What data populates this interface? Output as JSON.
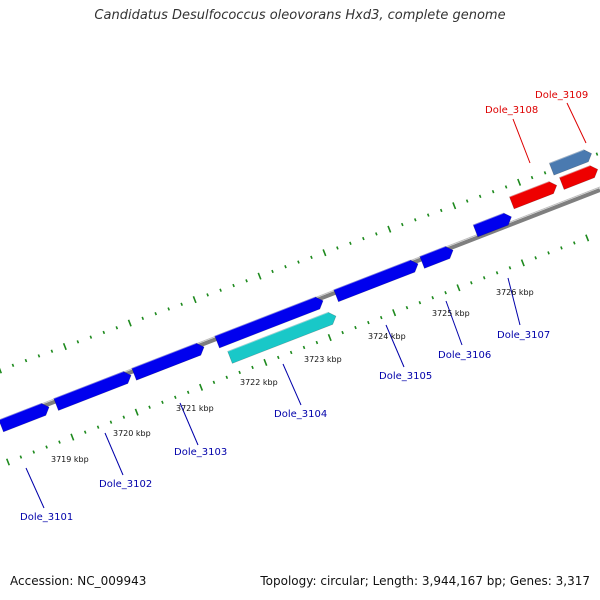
{
  "title": "Candidatus Desulfococcus oleovorans Hxd3, complete genome",
  "footer": {
    "accession": "Accession: NC_009943",
    "stats": "Topology: circular; Length: 3,944,167 bp; Genes: 3,317"
  },
  "colors": {
    "backbone": "#7f7f7f",
    "tick": "#1e8a1e",
    "forward_gene": "#0000ee",
    "highlight_gene": "#19c8c8",
    "rna_gene": "#ee0000",
    "other_gene": "#4a7ab0"
  },
  "tick_labels": [
    "3719 kbp",
    "3720 kbp",
    "3721 kbp",
    "3722 kbp",
    "3723 kbp",
    "3724 kbp",
    "3725 kbp",
    "3726 kbp"
  ],
  "gene_labels": [
    {
      "text": "Dole_3101",
      "color": "#0000aa"
    },
    {
      "text": "Dole_3102",
      "color": "#0000aa"
    },
    {
      "text": "Dole_3103",
      "color": "#0000aa"
    },
    {
      "text": "Dole_3104",
      "color": "#0000aa"
    },
    {
      "text": "Dole_3105",
      "color": "#0000aa"
    },
    {
      "text": "Dole_3106",
      "color": "#0000aa"
    },
    {
      "text": "Dole_3107",
      "color": "#0000aa"
    },
    {
      "text": "Dole_3108",
      "color": "#dd0000"
    },
    {
      "text": "Dole_3109",
      "color": "#dd0000"
    }
  ]
}
